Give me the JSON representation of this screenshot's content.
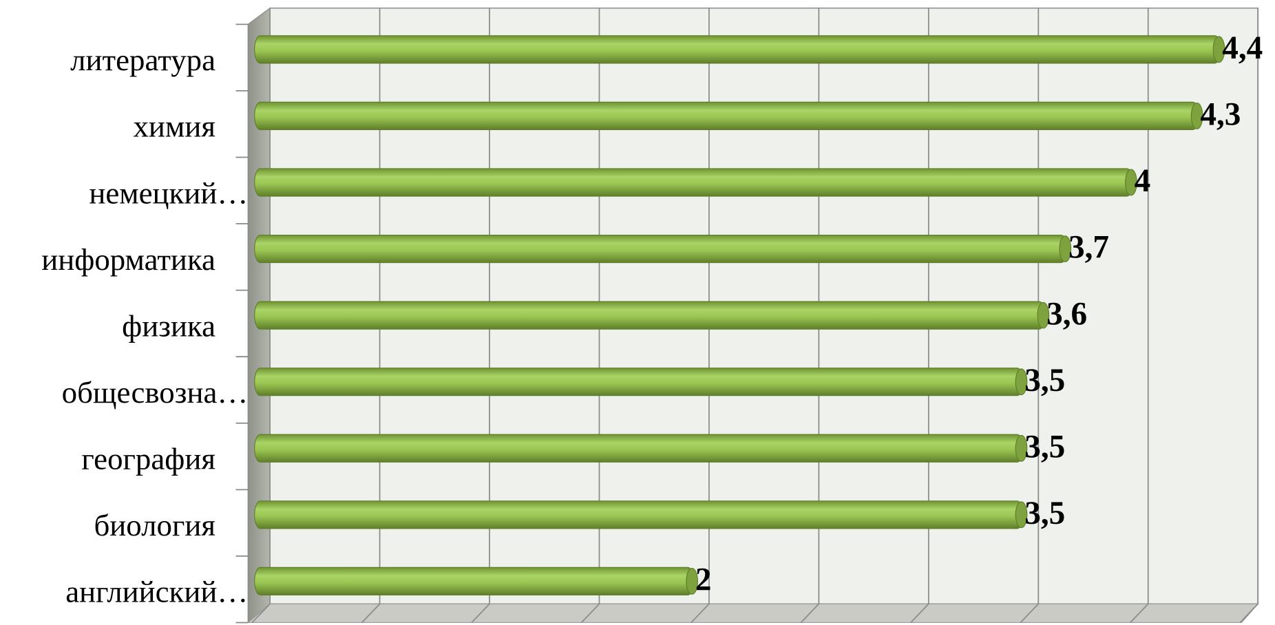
{
  "chart_data": {
    "type": "bar",
    "orientation": "horizontal",
    "categories": [
      "литература",
      "химия",
      "немецкий…",
      "информатика",
      "физика",
      "общесвозна…",
      "география",
      "биология",
      "английский…"
    ],
    "values": [
      4.4,
      4.3,
      4,
      3.7,
      3.6,
      3.5,
      3.5,
      3.5,
      2
    ],
    "value_labels": [
      "4,4",
      "4,3",
      "4",
      "3,7",
      "3,6",
      "3,5",
      "3,5",
      "3,5",
      "2"
    ],
    "color": "#9bc653",
    "xlim": [
      0,
      4.5
    ],
    "xticks": [
      0,
      0.5,
      1,
      1.5,
      2,
      2.5,
      3,
      3.5,
      4,
      4.5
    ],
    "grid": true
  }
}
